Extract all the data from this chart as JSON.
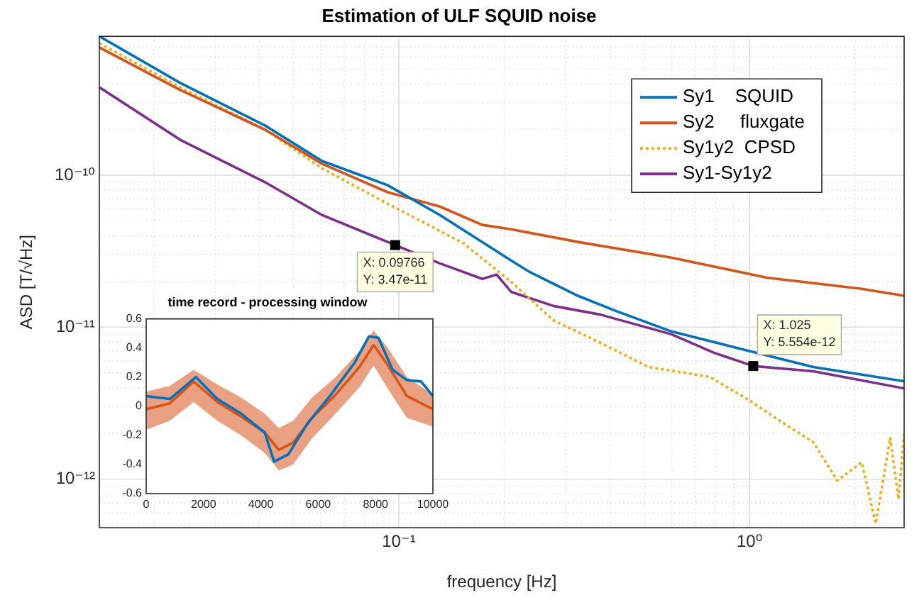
{
  "chart_data": [
    {
      "type": "line",
      "title": "Estimation of ULF SQUID noise",
      "xlabel": "frequency [Hz]",
      "ylabel": "ASD [T/√Hz]",
      "log": "xy",
      "xlim": [
        0.014,
        2.76
      ],
      "ylim": [
        4.8e-13,
        8.2e-10
      ],
      "xticks": [
        {
          "value": 0.02,
          "label": null
        },
        {
          "value": 0.03,
          "label": null
        },
        {
          "value": 0.04,
          "label": null
        },
        {
          "value": 0.05,
          "label": null
        },
        {
          "value": 0.06,
          "label": null
        },
        {
          "value": 0.07,
          "label": null
        },
        {
          "value": 0.08,
          "label": null
        },
        {
          "value": 0.09,
          "label": null
        },
        {
          "value": 0.1,
          "label": "10⁻¹"
        },
        {
          "value": 0.2,
          "label": null
        },
        {
          "value": 0.3,
          "label": null
        },
        {
          "value": 0.4,
          "label": null
        },
        {
          "value": 0.5,
          "label": null
        },
        {
          "value": 0.6,
          "label": null
        },
        {
          "value": 0.7,
          "label": null
        },
        {
          "value": 0.8,
          "label": null
        },
        {
          "value": 0.9,
          "label": null
        },
        {
          "value": 1,
          "label": "10⁰"
        },
        {
          "value": 2,
          "label": null
        }
      ],
      "yticks": [
        {
          "value": 5e-13,
          "label": null
        },
        {
          "value": 6e-13,
          "label": null
        },
        {
          "value": 7e-13,
          "label": null
        },
        {
          "value": 8e-13,
          "label": null
        },
        {
          "value": 9e-13,
          "label": null
        },
        {
          "value": 1e-12,
          "label": "10⁻¹²"
        },
        {
          "value": 2e-12,
          "label": null
        },
        {
          "value": 3e-12,
          "label": null
        },
        {
          "value": 4e-12,
          "label": null
        },
        {
          "value": 5e-12,
          "label": null
        },
        {
          "value": 6e-12,
          "label": null
        },
        {
          "value": 7e-12,
          "label": null
        },
        {
          "value": 8e-12,
          "label": null
        },
        {
          "value": 9e-12,
          "label": null
        },
        {
          "value": 1e-11,
          "label": "10⁻¹¹"
        },
        {
          "value": 2e-11,
          "label": null
        },
        {
          "value": 3e-11,
          "label": null
        },
        {
          "value": 4e-11,
          "label": null
        },
        {
          "value": 5e-11,
          "label": null
        },
        {
          "value": 6e-11,
          "label": null
        },
        {
          "value": 7e-11,
          "label": null
        },
        {
          "value": 8e-11,
          "label": null
        },
        {
          "value": 9e-11,
          "label": null
        },
        {
          "value": 1e-10,
          "label": "10⁻¹⁰"
        },
        {
          "value": 2e-10,
          "label": null
        },
        {
          "value": 3e-10,
          "label": null
        },
        {
          "value": 4e-10,
          "label": null
        },
        {
          "value": 5e-10,
          "label": null
        },
        {
          "value": 6e-10,
          "label": null
        },
        {
          "value": 7e-10,
          "label": null
        },
        {
          "value": 8e-10,
          "label": null
        }
      ],
      "grid": true,
      "legend": "top right",
      "annotations": [
        {
          "text": "X: 0.09766\nY: 3.47e-11",
          "x": 0.09766,
          "y": 3.47e-11
        },
        {
          "text": "X: 1.025\nY: 5.554e-12",
          "x": 1.025,
          "y": 5.554e-12
        }
      ],
      "series": [
        {
          "name": "Sy1    SQUID",
          "color": "#0072bd",
          "x": [
            0.014,
            0.0238,
            0.0416,
            0.0604,
            0.0929,
            0.131,
            0.209,
            0.236,
            0.324,
            0.412,
            0.599,
            0.972,
            1.52,
            2.76
          ],
          "values": [
            8.2e-10,
            4.05e-10,
            2.12e-10,
            1.24e-10,
            8.6e-11,
            5.47e-11,
            2.75e-11,
            2.31e-11,
            1.61e-11,
            1.29e-11,
            9.38e-12,
            7.08e-12,
            5.47e-12,
            4.41e-12
          ]
        },
        {
          "name": "Sy2     fluxgate",
          "color": "#d95319",
          "x": [
            0.014,
            0.0238,
            0.0416,
            0.0604,
            0.0929,
            0.131,
            0.173,
            0.209,
            0.324,
            0.599,
            1.12,
            2.09,
            2.76
          ],
          "values": [
            6.93e-10,
            3.64e-10,
            1.99e-10,
            1.19e-10,
            7.73e-11,
            6.22e-11,
            4.71e-11,
            4.41e-11,
            3.64e-11,
            2.87e-11,
            2.12e-11,
            1.79e-11,
            1.61e-11
          ]
        },
        {
          "name": "Sy1y2  CPSD",
          "color": "#edb120",
          "line_style": "dotted",
          "x": [
            0.014,
            0.0238,
            0.0416,
            0.0604,
            0.0929,
            0.153,
            0.209,
            0.276,
            0.376,
            0.516,
            0.77,
            0.991,
            1.26,
            1.52,
            1.78,
            2.09,
            2.29,
            2.52,
            2.66,
            2.76
          ],
          "values": [
            7.39e-10,
            3.79e-10,
            1.99e-10,
            1.11e-10,
            6.5e-11,
            3.56e-11,
            1.99e-11,
            1.11e-11,
            7.89e-12,
            5.47e-12,
            4.71e-12,
            3.34e-12,
            2.31e-12,
            1.75e-12,
            9.8e-13,
            1.29e-12,
            5.1e-13,
            1.87e-12,
            7.4e-13,
            1.99e-12
          ]
        },
        {
          "name": "Sy1-Sy1y2",
          "color": "#7e2f8e",
          "x": [
            0.014,
            0.0238,
            0.0416,
            0.0604,
            0.0929,
            0.09766,
            0.131,
            0.173,
            0.19,
            0.209,
            0.276,
            0.376,
            0.599,
            0.792,
            1.025,
            1.52,
            2.76
          ],
          "values": [
            3.79e-10,
            1.71e-10,
            8.98e-11,
            5.47e-11,
            3.64e-11,
            3.47e-11,
            2.63e-11,
            2.08e-11,
            2.22e-11,
            1.71e-11,
            1.38e-11,
            1.21e-11,
            8.98e-12,
            6.79e-12,
            5.554e-12,
            5.13e-12,
            3.96e-12
          ]
        }
      ]
    },
    {
      "type": "line",
      "title": "time record - processing window",
      "xlim": [
        0,
        10000
      ],
      "ylim": [
        -0.6,
        0.6
      ],
      "xticks": [
        0,
        2000,
        4000,
        6000,
        8000,
        10000
      ],
      "yticks": [
        -0.6,
        -0.4,
        -0.2,
        0,
        0.2,
        0.4,
        0.6
      ],
      "series": [
        {
          "color": "#0072bd",
          "x": [
            0,
            826,
            1736,
            2479,
            3306,
            4132,
            4463,
            4959,
            5620,
            6446,
            7273,
            7769,
            8099,
            8595,
            9091,
            9587,
            10000
          ],
          "values": [
            0.07,
            0.05,
            0.2,
            0.05,
            -0.05,
            -0.18,
            -0.38,
            -0.33,
            -0.12,
            0.08,
            0.3,
            0.48,
            0.47,
            0.25,
            0.18,
            0.17,
            0.07
          ]
        },
        {
          "color": "#d95319",
          "x": [
            0,
            826,
            1653,
            2479,
            3306,
            4132,
            4628,
            5124,
            5785,
            6612,
            7438,
            7934,
            8430,
            9091,
            10000
          ],
          "values": [
            -0.02,
            0.02,
            0.17,
            0.03,
            -0.07,
            -0.18,
            -0.3,
            -0.25,
            -0.08,
            0.08,
            0.27,
            0.42,
            0.28,
            0.07,
            -0.02
          ],
          "lower": [
            -0.16,
            -0.1,
            0.03,
            -0.1,
            -0.2,
            -0.32,
            -0.44,
            -0.4,
            -0.22,
            -0.05,
            0.13,
            0.28,
            0.12,
            -0.08,
            -0.14
          ],
          "upper": [
            0.1,
            0.14,
            0.25,
            0.15,
            0.06,
            -0.05,
            -0.15,
            -0.1,
            0.06,
            0.2,
            0.38,
            0.52,
            0.4,
            0.2,
            0.08
          ]
        }
      ]
    }
  ]
}
